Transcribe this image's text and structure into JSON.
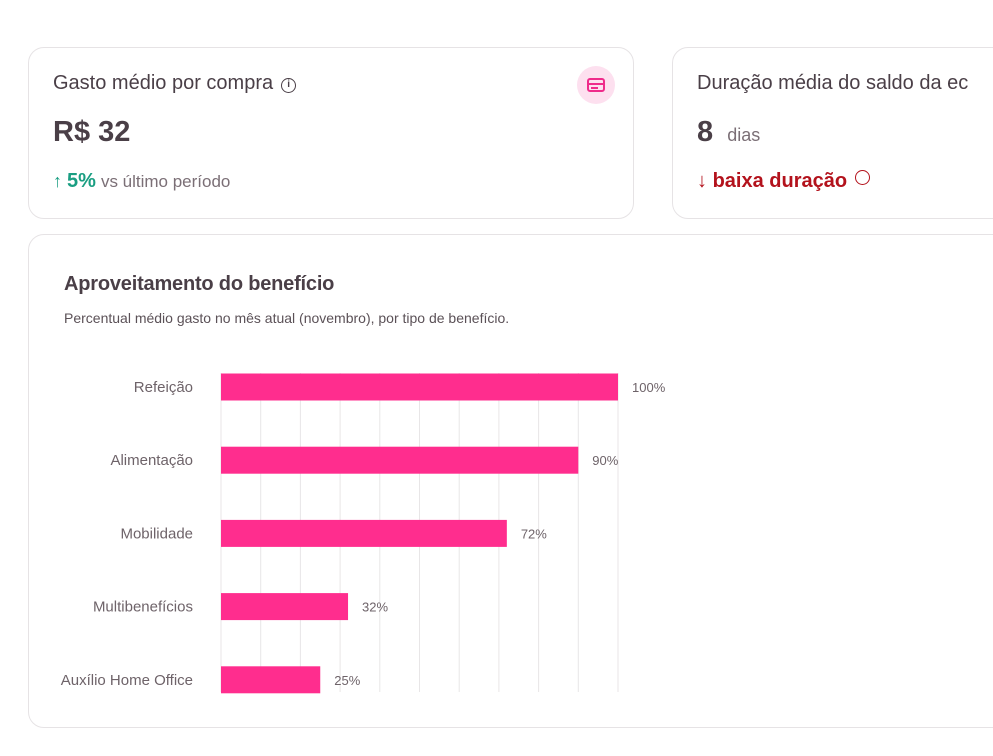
{
  "cards": [
    {
      "title": "Gasto médio por compra",
      "value": "R$ 32",
      "trend_value": "5%",
      "trend_text": "vs último período",
      "trend_color": "#1a9e82",
      "icon": "credit-card-icon"
    },
    {
      "title": "Duração média do saldo da ec",
      "value": "8",
      "unit": "dias",
      "status": "baixa duração",
      "status_color": "#b3121c"
    }
  ],
  "chart_card": {
    "title": "Aproveitamento do benefício",
    "description": "Percentual médio gasto no mês atual (novembro), por tipo de benefício."
  },
  "chart_data": {
    "type": "bar",
    "orientation": "horizontal",
    "categories": [
      "Refeição",
      "Alimentação",
      "Mobilidade",
      "Multibenefícios",
      "Auxílio Home Office"
    ],
    "values": [
      100,
      90,
      72,
      32,
      25
    ],
    "labels": [
      "100%",
      "90%",
      "72%",
      "32%",
      "25%"
    ],
    "xlim": [
      0,
      100
    ],
    "grid": true,
    "bar_color": "#ff2d8e"
  }
}
